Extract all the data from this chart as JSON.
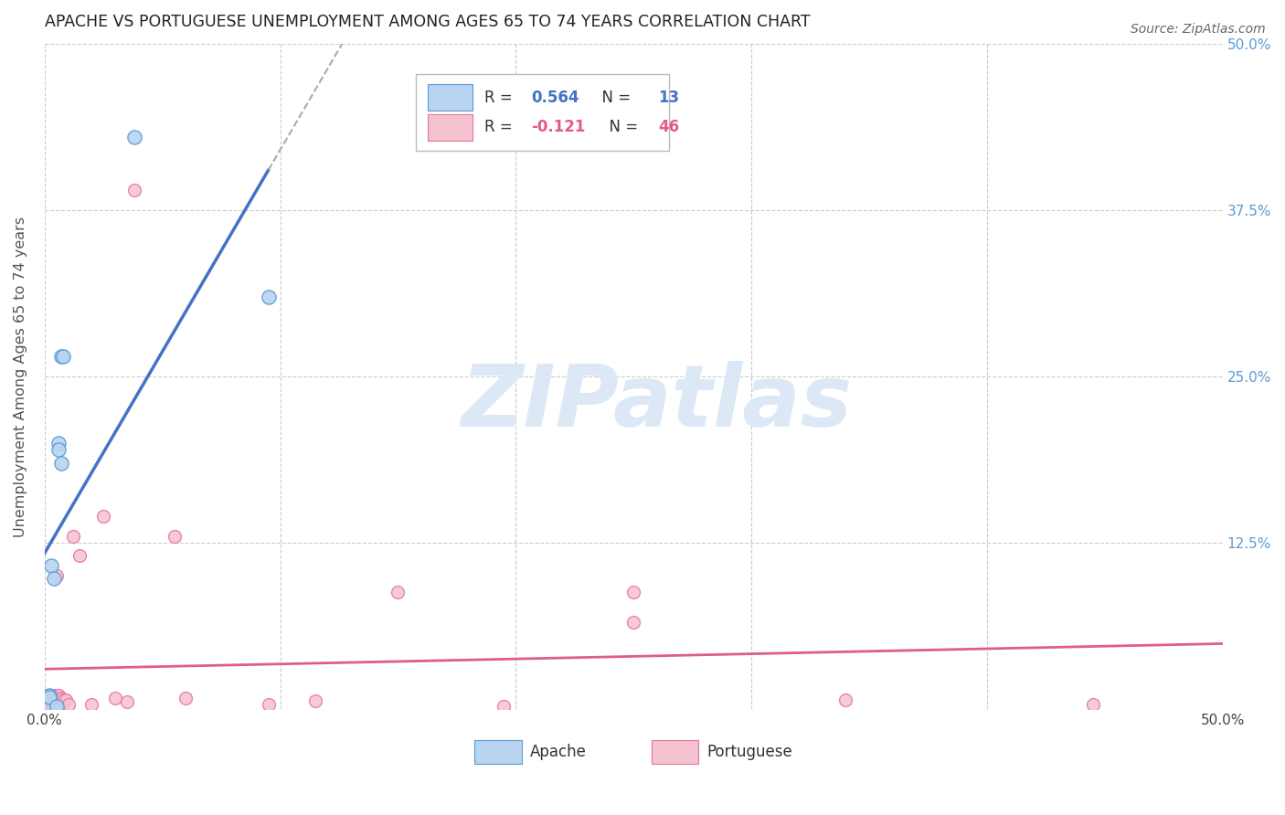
{
  "title": "APACHE VS PORTUGUESE UNEMPLOYMENT AMONG AGES 65 TO 74 YEARS CORRELATION CHART",
  "source": "Source: ZipAtlas.com",
  "ylabel": "Unemployment Among Ages 65 to 74 years",
  "xlim": [
    0.0,
    0.5
  ],
  "ylim": [
    -0.02,
    0.52
  ],
  "plot_xlim": [
    0.0,
    0.5
  ],
  "plot_ylim": [
    0.0,
    0.5
  ],
  "xticks": [
    0.0,
    0.1,
    0.2,
    0.3,
    0.4,
    0.5
  ],
  "xticklabels": [
    "0.0%",
    "",
    "",
    "",
    "",
    "50.0%"
  ],
  "yticks": [
    0.0,
    0.125,
    0.25,
    0.375,
    0.5
  ],
  "yticklabels_left": [
    "",
    "12.5%",
    "25.0%",
    "37.5%",
    "50.0%"
  ],
  "yticklabels_right": [
    "",
    "12.5%",
    "25.0%",
    "37.5%",
    "50.0%"
  ],
  "apache_R": 0.564,
  "apache_N": 13,
  "portuguese_R": -0.121,
  "portuguese_N": 46,
  "apache_face_color": "#b8d4f0",
  "apache_edge_color": "#5b9bd5",
  "portuguese_face_color": "#f5c2cf",
  "portuguese_edge_color": "#e8759a",
  "apache_line_color": "#4472c4",
  "portuguese_line_color": "#e05c8a",
  "apache_scatter_size": 120,
  "portuguese_scatter_size": 100,
  "apache_points": [
    [
      0.001,
      0.003
    ],
    [
      0.002,
      0.01
    ],
    [
      0.002,
      0.009
    ],
    [
      0.003,
      0.108
    ],
    [
      0.004,
      0.098
    ],
    [
      0.005,
      0.002
    ],
    [
      0.006,
      0.2
    ],
    [
      0.006,
      0.195
    ],
    [
      0.007,
      0.185
    ],
    [
      0.007,
      0.265
    ],
    [
      0.008,
      0.265
    ],
    [
      0.038,
      0.43
    ],
    [
      0.095,
      0.31
    ]
  ],
  "portuguese_points": [
    [
      0.001,
      0.001
    ],
    [
      0.001,
      0.002
    ],
    [
      0.001,
      0.004
    ],
    [
      0.001,
      0.006
    ],
    [
      0.001,
      0.01
    ],
    [
      0.002,
      0.001
    ],
    [
      0.002,
      0.003
    ],
    [
      0.002,
      0.006
    ],
    [
      0.002,
      0.007
    ],
    [
      0.002,
      0.009
    ],
    [
      0.003,
      0.002
    ],
    [
      0.003,
      0.005
    ],
    [
      0.003,
      0.007
    ],
    [
      0.003,
      0.009
    ],
    [
      0.004,
      0.005
    ],
    [
      0.004,
      0.007
    ],
    [
      0.004,
      0.009
    ],
    [
      0.004,
      0.01
    ],
    [
      0.005,
      0.006
    ],
    [
      0.005,
      0.008
    ],
    [
      0.005,
      0.1
    ],
    [
      0.006,
      0.003
    ],
    [
      0.006,
      0.008
    ],
    [
      0.006,
      0.01
    ],
    [
      0.007,
      0.001
    ],
    [
      0.007,
      0.008
    ],
    [
      0.008,
      0.007
    ],
    [
      0.009,
      0.007
    ],
    [
      0.01,
      0.003
    ],
    [
      0.012,
      0.13
    ],
    [
      0.015,
      0.115
    ],
    [
      0.02,
      0.003
    ],
    [
      0.025,
      0.145
    ],
    [
      0.03,
      0.008
    ],
    [
      0.035,
      0.005
    ],
    [
      0.038,
      0.39
    ],
    [
      0.055,
      0.13
    ],
    [
      0.06,
      0.008
    ],
    [
      0.095,
      0.003
    ],
    [
      0.115,
      0.006
    ],
    [
      0.15,
      0.088
    ],
    [
      0.195,
      0.002
    ],
    [
      0.25,
      0.088
    ],
    [
      0.34,
      0.007
    ],
    [
      0.445,
      0.003
    ],
    [
      0.25,
      0.065
    ]
  ],
  "background_color": "#ffffff",
  "grid_color": "#cccccc",
  "watermark_text": "ZIPatlas",
  "watermark_color": "#dce8f5",
  "legend_apache_label": "Apache",
  "legend_portuguese_label": "Portuguese"
}
